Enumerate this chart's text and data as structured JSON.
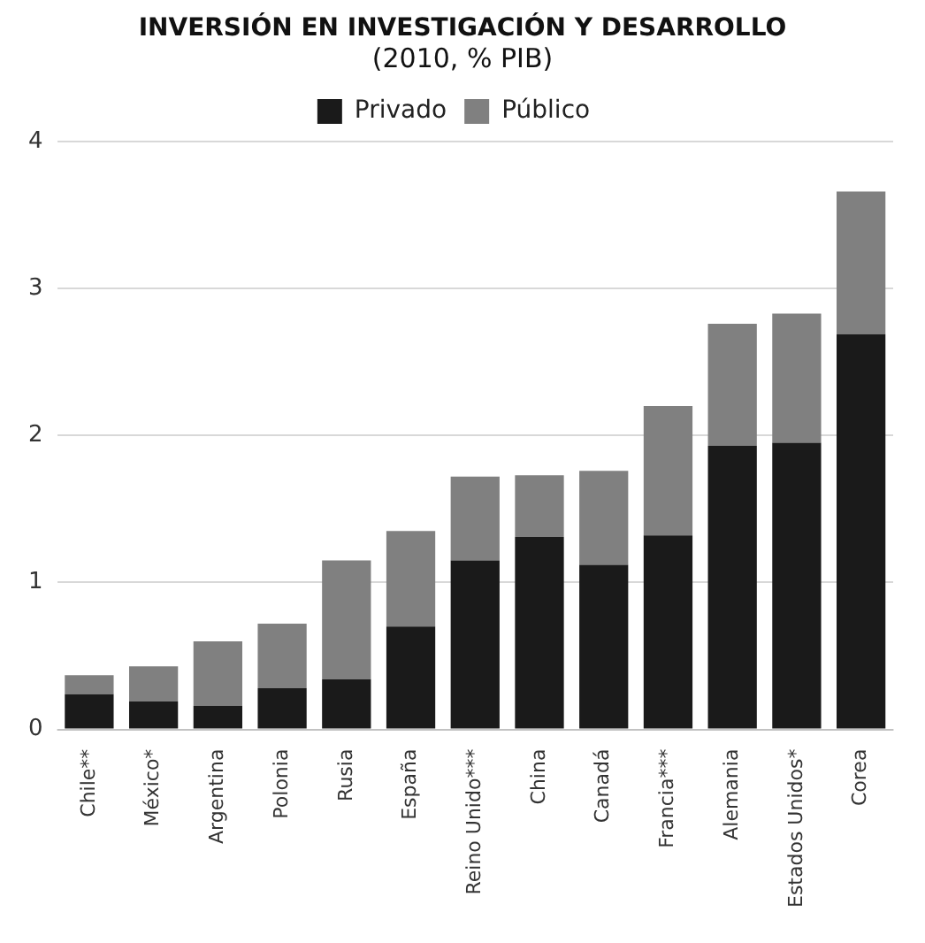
{
  "chart_data": {
    "type": "bar",
    "title": "INVERSIÓN EN INVESTIGACIÓN Y DESARROLLO",
    "subtitle": "(2010, % PIB)",
    "categories": [
      "Chile**",
      "México*",
      "Argentina",
      "Polonia",
      "Rusia",
      "España",
      "Reino Unido***",
      "China",
      "Canadá",
      "Francia***",
      "Alemania",
      "Estados Unidos*",
      "Corea"
    ],
    "series": [
      {
        "name": "Privado",
        "color": "#1a1a1a",
        "values": [
          0.24,
          0.19,
          0.16,
          0.28,
          0.34,
          0.7,
          1.15,
          1.31,
          1.12,
          1.32,
          1.93,
          1.95,
          2.69
        ]
      },
      {
        "name": "Público",
        "color": "#808080",
        "values": [
          0.13,
          0.24,
          0.44,
          0.44,
          0.81,
          0.65,
          0.57,
          0.42,
          0.64,
          0.88,
          0.83,
          0.88,
          0.97
        ]
      }
    ],
    "stacked": true,
    "ylim": [
      0,
      4
    ],
    "yticks": [
      0,
      1,
      2,
      3,
      4
    ],
    "grid": "y",
    "legend": "top"
  }
}
